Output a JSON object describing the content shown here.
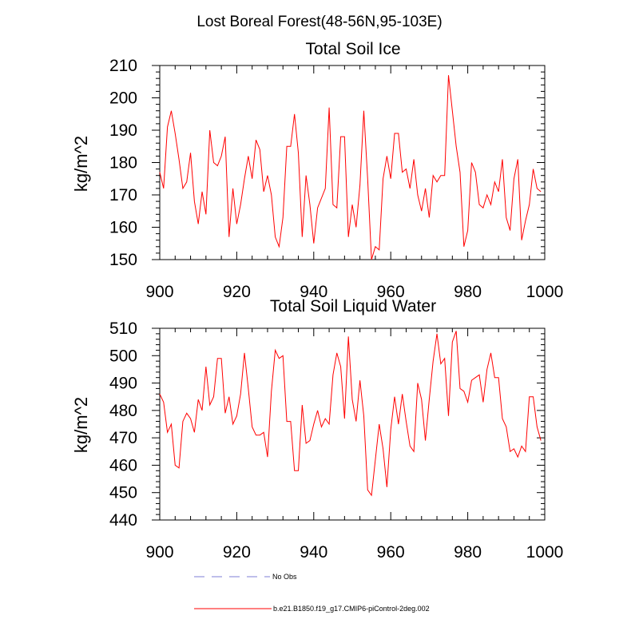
{
  "figure": {
    "title": "Lost Boreal Forest(48-56N,95-103E)"
  },
  "colors": {
    "model": "#ff0000",
    "obs": "#9999dd",
    "axis": "#000000"
  },
  "legend": {
    "items": [
      {
        "label": "No Obs",
        "style": "dashed",
        "color": "#9999dd"
      },
      {
        "label": "b.e21.B1850.f19_g17.CMIP6-piControl-2deg.002",
        "style": "solid",
        "color": "#ff0000"
      }
    ]
  },
  "chart_data": [
    {
      "type": "line",
      "title": "Total Soil Ice",
      "xlabel": "",
      "ylabel": "kg/m^2",
      "xlim": [
        900,
        1000
      ],
      "ylim": [
        150,
        210
      ],
      "xticks": [
        900,
        920,
        940,
        960,
        980,
        1000
      ],
      "yticks": [
        150,
        160,
        170,
        180,
        190,
        200,
        210
      ],
      "grid": false,
      "series": [
        {
          "name": "b.e21.B1850.f19_g17.CMIP6-piControl-2deg.002",
          "x": [
            900,
            901,
            902,
            903,
            904,
            905,
            906,
            907,
            908,
            909,
            910,
            911,
            912,
            913,
            914,
            915,
            916,
            917,
            918,
            919,
            920,
            921,
            922,
            923,
            924,
            925,
            926,
            927,
            928,
            929,
            930,
            931,
            932,
            933,
            934,
            935,
            936,
            937,
            938,
            939,
            940,
            941,
            942,
            943,
            944,
            945,
            946,
            947,
            948,
            949,
            950,
            951,
            952,
            953,
            954,
            955,
            956,
            957,
            958,
            959,
            960,
            961,
            962,
            963,
            964,
            965,
            966,
            967,
            968,
            969,
            970,
            971,
            972,
            973,
            974,
            975,
            976,
            977,
            978,
            979,
            980,
            981,
            982,
            983,
            984,
            985,
            986,
            987,
            988,
            989,
            990,
            991,
            992,
            993,
            994,
            995,
            996,
            997,
            998,
            999
          ],
          "values": [
            177,
            172,
            191,
            196,
            189,
            181,
            172,
            174,
            183,
            168,
            161,
            171,
            164,
            190,
            180,
            179,
            182,
            188,
            157,
            172,
            161,
            167,
            175,
            182,
            175,
            187,
            184,
            171,
            176,
            170,
            157,
            154,
            163,
            185,
            185,
            195,
            183,
            157,
            176,
            167,
            155,
            166,
            169,
            172,
            197,
            167,
            166,
            188,
            188,
            157,
            167,
            160,
            173,
            196,
            175,
            150,
            154,
            153,
            175,
            182,
            175,
            189,
            189,
            177,
            178,
            172,
            181,
            170,
            165,
            172,
            163,
            176,
            174,
            176,
            176,
            207,
            196,
            185,
            177,
            154,
            159,
            180,
            177,
            167,
            166,
            170,
            167,
            174,
            171,
            181,
            163,
            159,
            175,
            181,
            156,
            162,
            167,
            178,
            172,
            171
          ]
        }
      ]
    },
    {
      "type": "line",
      "title": "Total Soil Liquid Water",
      "xlabel": "",
      "ylabel": "kg/m^2",
      "xlim": [
        900,
        1000
      ],
      "ylim": [
        440,
        510
      ],
      "xticks": [
        900,
        920,
        940,
        960,
        980,
        1000
      ],
      "yticks": [
        440,
        450,
        460,
        470,
        480,
        490,
        500,
        510
      ],
      "grid": false,
      "series": [
        {
          "name": "b.e21.B1850.f19_g17.CMIP6-piControl-2deg.002",
          "x": [
            900,
            901,
            902,
            903,
            904,
            905,
            906,
            907,
            908,
            909,
            910,
            911,
            912,
            913,
            914,
            915,
            916,
            917,
            918,
            919,
            920,
            921,
            922,
            923,
            924,
            925,
            926,
            927,
            928,
            929,
            930,
            931,
            932,
            933,
            934,
            935,
            936,
            937,
            938,
            939,
            940,
            941,
            942,
            943,
            944,
            945,
            946,
            947,
            948,
            949,
            950,
            951,
            952,
            953,
            954,
            955,
            956,
            957,
            958,
            959,
            960,
            961,
            962,
            963,
            964,
            965,
            966,
            967,
            968,
            969,
            970,
            971,
            972,
            973,
            974,
            975,
            976,
            977,
            978,
            979,
            980,
            981,
            982,
            983,
            984,
            985,
            986,
            987,
            988,
            989,
            990,
            991,
            992,
            993,
            994,
            995,
            996,
            997,
            998,
            999
          ],
          "values": [
            486,
            483,
            472,
            475,
            460,
            459,
            476,
            479,
            477,
            472,
            484,
            480,
            496,
            482,
            485,
            499,
            499,
            479,
            485,
            475,
            478,
            486,
            501,
            488,
            474,
            471,
            471,
            472,
            463,
            487,
            502,
            499,
            500,
            476,
            476,
            458,
            458,
            482,
            468,
            469,
            475,
            480,
            474,
            477,
            475,
            493,
            501,
            496,
            477,
            507,
            484,
            476,
            491,
            478,
            451,
            449,
            462,
            475,
            466,
            452,
            473,
            485,
            475,
            486,
            476,
            467,
            465,
            490,
            484,
            469,
            484,
            498,
            508,
            497,
            499,
            478,
            505,
            509,
            488,
            487,
            483,
            491,
            492,
            493,
            483,
            495,
            501,
            492,
            492,
            477,
            474,
            465,
            466,
            463,
            467,
            465,
            485,
            485,
            474,
            469
          ]
        }
      ]
    }
  ]
}
